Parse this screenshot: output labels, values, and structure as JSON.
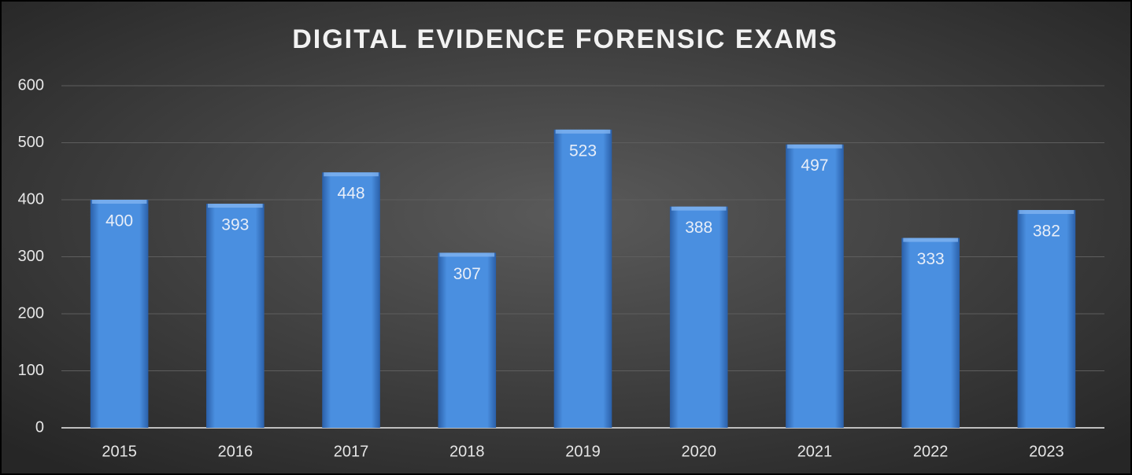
{
  "chart_data": {
    "type": "bar",
    "title": "DIGITAL EVIDENCE FORENSIC EXAMS",
    "categories": [
      "2015",
      "2016",
      "2017",
      "2018",
      "2019",
      "2020",
      "2021",
      "2022",
      "2023"
    ],
    "values": [
      400,
      393,
      448,
      307,
      523,
      388,
      497,
      333,
      382
    ],
    "color": "#4a8fe0",
    "ylim": [
      0,
      600
    ],
    "yticks": [
      0,
      100,
      200,
      300,
      400,
      500,
      600
    ],
    "grid": true
  }
}
